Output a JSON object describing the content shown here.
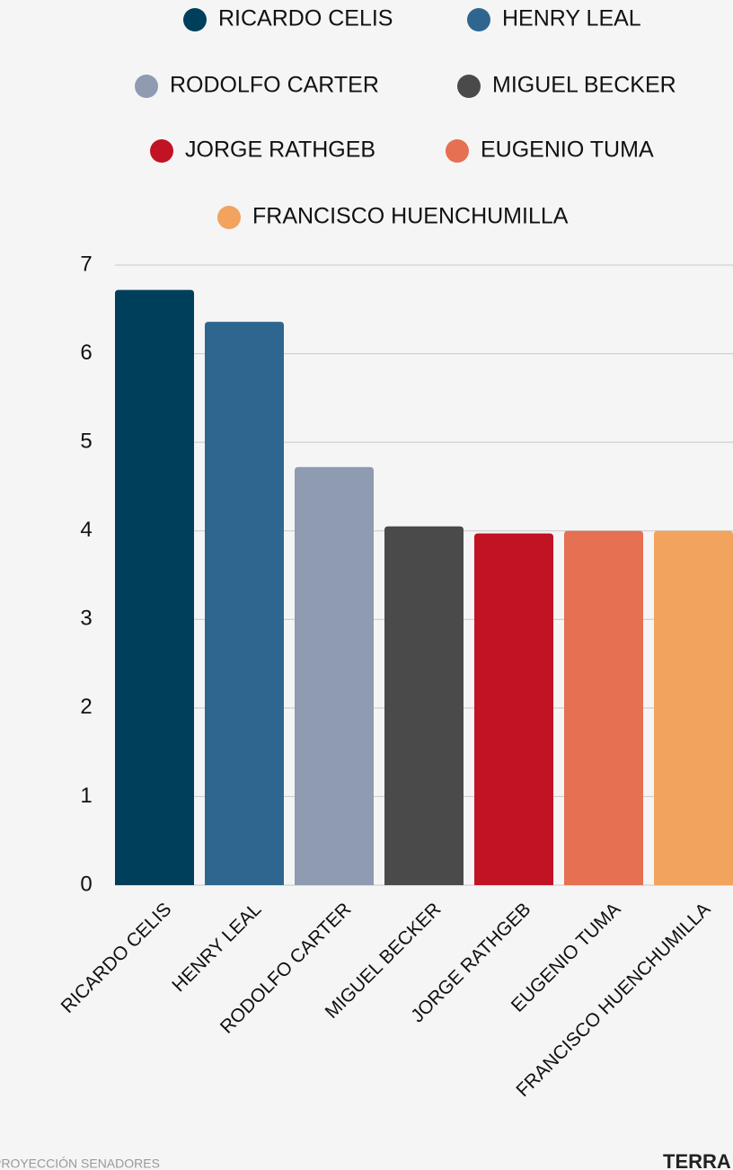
{
  "chart_data": {
    "type": "bar",
    "categories": [
      "RICARDO CELIS",
      "HENRY LEAL",
      "RODOLFO CARTER",
      "MIGUEL BECKER",
      "JORGE RATHGEB",
      "EUGENIO TUMA",
      "FRANCISCO HUENCHUMILLA"
    ],
    "values": [
      6.72,
      6.36,
      4.72,
      4.05,
      3.97,
      4.0,
      4.0
    ],
    "colors": [
      "#003f5c",
      "#2f6690",
      "#8e9bb1",
      "#4a4a4a",
      "#c11324",
      "#e67052",
      "#f2a35e"
    ],
    "ylim": [
      0,
      7
    ],
    "yticks": [
      0,
      1,
      2,
      3,
      4,
      5,
      6,
      7
    ],
    "grid": true,
    "footer": "PROYECCIÓN SENADORES",
    "logo": "TERRA"
  }
}
